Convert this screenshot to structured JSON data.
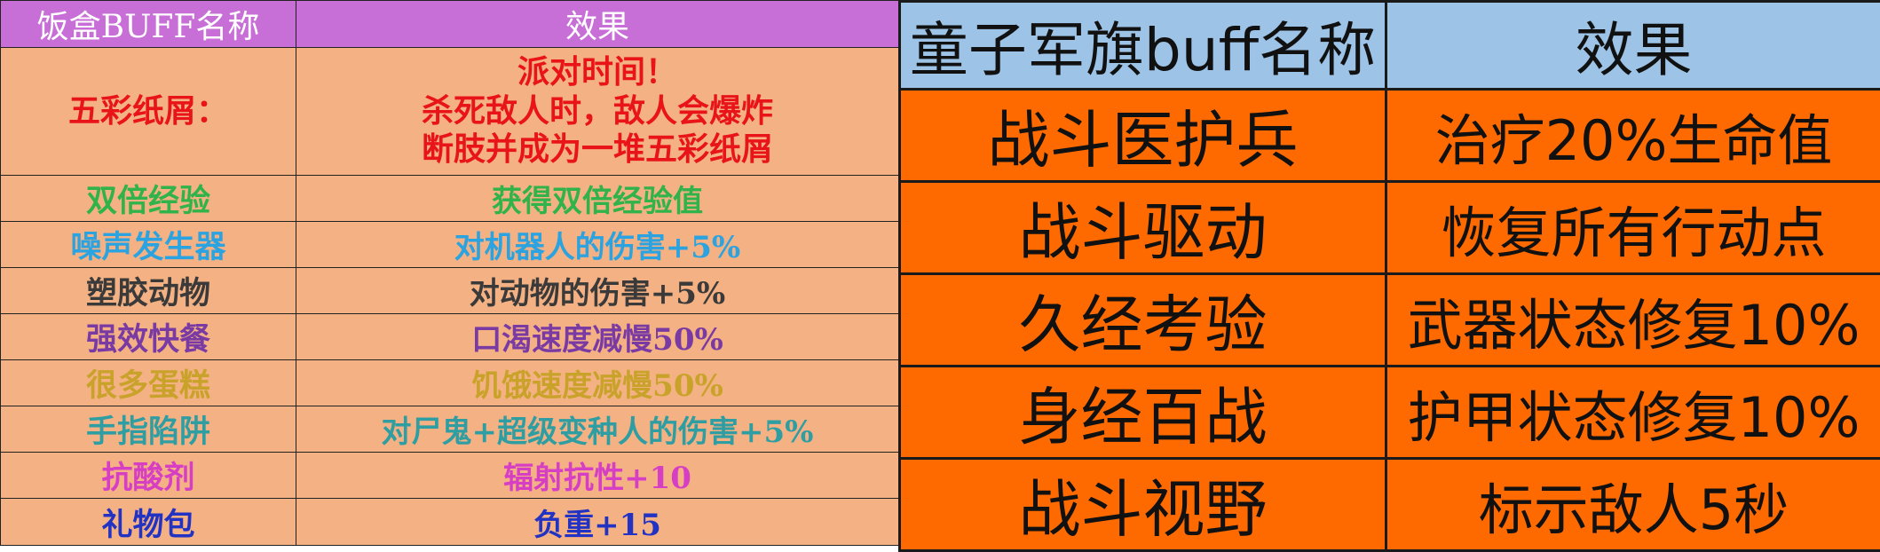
{
  "colors": {
    "left_header_bg": "#c76fd6",
    "left_row_bg": "#f4b183",
    "right_header_bg": "#9dc3e6",
    "right_row_bg": "#ff6a00"
  },
  "left_table": {
    "headers": {
      "name": "饭盒BUFF名称",
      "effect": "效果"
    },
    "rows": [
      {
        "name": "五彩纸屑：",
        "effect_lines": [
          "派对时间！",
          "杀死敌人时，敌人会爆炸",
          "断肢并成为一堆五彩纸屑"
        ],
        "color": "#e8141a"
      },
      {
        "name": "双倍经验",
        "effect": "获得双倍经验值",
        "color": "#2fb34a"
      },
      {
        "name": "噪声发生器",
        "effect": "对机器人的伤害+5%",
        "color": "#2aa3e0"
      },
      {
        "name": "塑胶动物",
        "effect": "对动物的伤害+5%",
        "color": "#3a3a3a"
      },
      {
        "name": "强效快餐",
        "effect": "口渴速度减慢50%",
        "color": "#7a3aa3"
      },
      {
        "name": "很多蛋糕",
        "effect": "饥饿速度减慢50%",
        "color": "#c9a22a"
      },
      {
        "name": "手指陷阱",
        "effect": "对尸鬼+超级变种人的伤害+5%",
        "color": "#2f9ea3"
      },
      {
        "name": "抗酸剂",
        "effect": "辐射抗性+10",
        "color": "#d63fc4"
      },
      {
        "name": "礼物包",
        "effect": "负重+15",
        "color": "#2233c4"
      }
    ]
  },
  "right_table": {
    "headers": {
      "name": "童子军旗buff名称",
      "effect": "效果"
    },
    "rows": [
      {
        "name": "战斗医护兵",
        "effect": "治疗20%生命值"
      },
      {
        "name": "战斗驱动",
        "effect": "恢复所有行动点"
      },
      {
        "name": "久经考验",
        "effect": "武器状态修复10%"
      },
      {
        "name": "身经百战",
        "effect": "护甲状态修复10%"
      },
      {
        "name": "战斗视野",
        "effect": "标示敌人5秒"
      }
    ]
  }
}
